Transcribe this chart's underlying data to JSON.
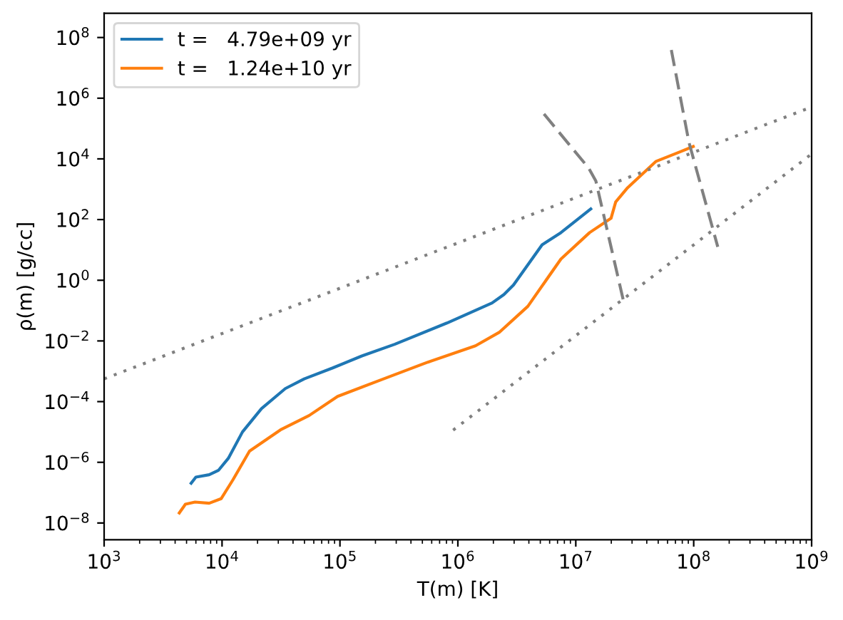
{
  "chart_data": {
    "type": "line",
    "xlabel": "T(m) [K]",
    "ylabel": "ρ(m) [g/cc]",
    "log": "xy",
    "legend": "top left",
    "grid": false,
    "xlim": [
      1000,
      1000000000
    ],
    "ylim": [
      2.8e-09,
      630000000.0
    ],
    "xticks": [
      {
        "value": 1000,
        "label": "10$^{3}$"
      },
      {
        "value": 10000,
        "label": "10$^{4}$"
      },
      {
        "value": 100000,
        "label": "10$^{5}$"
      },
      {
        "value": 1000000,
        "label": "10$^{6}$"
      },
      {
        "value": 10000000,
        "label": "10$^{7}$"
      },
      {
        "value": 100000000,
        "label": "10$^{8}$"
      },
      {
        "value": 1000000000,
        "label": "10$^{9}$"
      }
    ],
    "yticks": [
      {
        "value": 1e-08,
        "label": "10$^{−8}$"
      },
      {
        "value": 1e-06,
        "label": "10$^{−6}$"
      },
      {
        "value": 0.0001,
        "label": "10$^{−4}$"
      },
      {
        "value": 0.01,
        "label": "10$^{−2}$"
      },
      {
        "value": 1,
        "label": "10$^{0}$"
      },
      {
        "value": 100,
        "label": "10$^{2}$"
      },
      {
        "value": 10000,
        "label": "10$^{4}$"
      },
      {
        "value": 1000000,
        "label": "10$^{6}$"
      },
      {
        "value": 100000000,
        "label": "10$^{8}$"
      }
    ],
    "series": [
      {
        "name": "t =   4.79e+09 yr",
        "color": "#1f77b4",
        "line_style": "solid",
        "x": [
          5470,
          6000,
          7780,
          9350,
          11300,
          14900,
          21600,
          34400,
          49800,
          86900,
          152000,
          291000,
          807000,
          1950000,
          2460000,
          2960000,
          5180000,
          7480000,
          13400000
        ],
        "values": [
          2.04e-07,
          3.24e-07,
          3.89e-07,
          5.5e-07,
          1.35e-06,
          1e-05,
          5.89e-05,
          0.000269,
          0.000562,
          0.00129,
          0.00316,
          0.00776,
          0.0389,
          0.178,
          0.339,
          0.692,
          14.8,
          37.2,
          224
        ]
      },
      {
        "name": "t =   1.24e+10 yr",
        "color": "#ff7f0e",
        "line_style": "solid",
        "x": [
          4340,
          4890,
          5900,
          7780,
          9820,
          12400,
          17100,
          31300,
          54700,
          95500,
          220000,
          557000,
          1410000,
          2240000,
          3920000,
          7480000,
          13100000,
          19900000,
          21800000,
          27500000,
          48000000,
          76400000,
          99100000
        ],
        "values": [
          2.14e-08,
          4.17e-08,
          4.9e-08,
          4.47e-08,
          6.31e-08,
          2.69e-07,
          2.34e-06,
          1.17e-05,
          3.47e-05,
          0.000148,
          0.000513,
          0.002,
          0.00692,
          0.0191,
          0.138,
          5.01,
          37.2,
          110,
          380,
          1120,
          8320,
          17000,
          25700
        ]
      },
      {
        "color": "#808080",
        "line_style": "dotted",
        "x": [
          1000,
          1000000000
        ],
        "values": [
          0.000562,
          513000.0
        ]
      },
      {
        "color": "#808080",
        "line_style": "dotted",
        "x": [
          912000,
          1000000000
        ],
        "values": [
          1.15e-05,
          14500
        ]
      },
      {
        "color": "#808080",
        "line_style": "dashed",
        "x": [
          5370000,
          12900000,
          14800000,
          26000000
        ],
        "values": [
          302000,
          4900,
          1860,
          0.138
        ]
      },
      {
        "color": "#808080",
        "line_style": "dashed",
        "x": [
          64600000,
          91200000,
          160000000
        ],
        "values": [
          38900000,
          34700,
          12.6
        ]
      }
    ]
  }
}
